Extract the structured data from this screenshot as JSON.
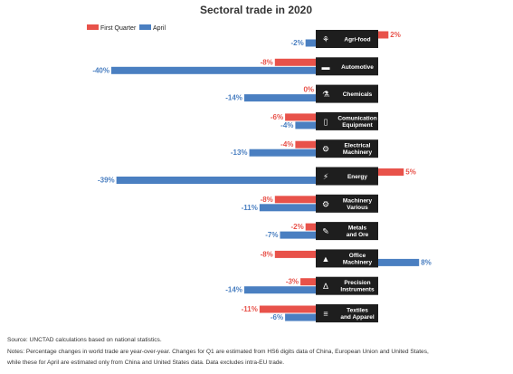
{
  "chart_data": {
    "type": "bar",
    "orientation": "horizontal",
    "title": "Sectoral trade in 2020",
    "legend_position": "top-left",
    "series": [
      {
        "name": "First Quarter",
        "color": "#e8524a",
        "values": [
          2,
          -8,
          0,
          -6,
          -4,
          5,
          -8,
          -2,
          -8,
          -3,
          -11
        ]
      },
      {
        "name": "April",
        "color": "#4a7fc1",
        "values": [
          -2,
          -40,
          -14,
          -4,
          -13,
          -39,
          -11,
          -7,
          8,
          -14,
          -6
        ]
      }
    ],
    "categories": [
      {
        "label": [
          "Agri-food"
        ],
        "icon": "plant-icon"
      },
      {
        "label": [
          "Automotive"
        ],
        "icon": "car-icon"
      },
      {
        "label": [
          "Chemicals"
        ],
        "icon": "flask-icon"
      },
      {
        "label": [
          "Comunication",
          "Equipment"
        ],
        "icon": "phone-icon"
      },
      {
        "label": [
          "Electrical",
          "Machinery"
        ],
        "icon": "gear-icon"
      },
      {
        "label": [
          "Energy"
        ],
        "icon": "lightning-icon"
      },
      {
        "label": [
          "Machinery",
          "Various"
        ],
        "icon": "cogs-icon"
      },
      {
        "label": [
          "Metals",
          "and Ore"
        ],
        "icon": "pickaxe-icon"
      },
      {
        "label": [
          "Office",
          "Machinery"
        ],
        "icon": "lamp-icon"
      },
      {
        "label": [
          "Precision",
          "Instruments"
        ],
        "icon": "compass-icon"
      },
      {
        "label": [
          "Textiles",
          "and Apparel"
        ],
        "icon": "curtain-icon"
      }
    ],
    "value_suffix": "%"
  },
  "footer": {
    "source": "Source: UNCTAD calculations based on national statistics.",
    "notes_line1": "Notes: Percentage changes in world trade are year-over-year. Changes for Q1 are estimated from HS6 digits data of China, European Union and United States,",
    "notes_line2": "while these for April are estimated only from China and United States data. Data excludes intra-EU trade."
  }
}
